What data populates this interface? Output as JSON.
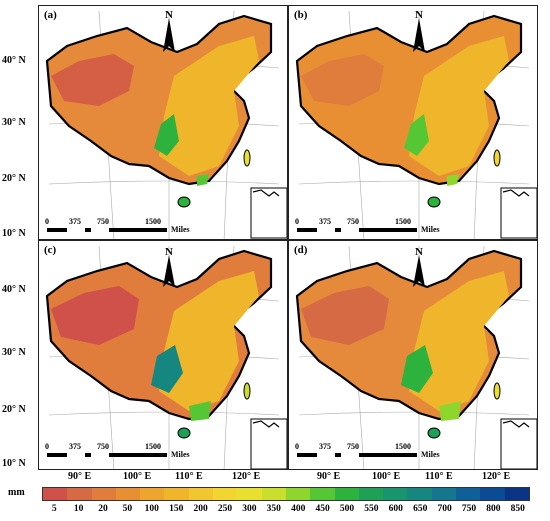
{
  "panels": [
    {
      "label": "(a)"
    },
    {
      "label": "(b)"
    },
    {
      "label": "(c)"
    },
    {
      "label": "(d)"
    }
  ],
  "north_arrow": "N",
  "scale_bar": {
    "ticks": [
      "0",
      "375",
      "750",
      "1500"
    ],
    "unit": "Miles"
  },
  "lat_labels": [
    "40° N",
    "30° N",
    "20° N",
    "10° N"
  ],
  "lon_labels": [
    "90° E",
    "100° E",
    "110° E",
    "120° E"
  ],
  "legend": {
    "unit": "mm",
    "values": [
      "5",
      "10",
      "20",
      "50",
      "100",
      "150",
      "200",
      "250",
      "300",
      "350",
      "400",
      "450",
      "500",
      "550",
      "600",
      "650",
      "700",
      "750",
      "800",
      "850"
    ],
    "colors": [
      "#d0504a",
      "#d66a45",
      "#e07d3c",
      "#e88f34",
      "#eda52d",
      "#f0b62b",
      "#f2c62e",
      "#f3d531",
      "#e8df2f",
      "#c9df2c",
      "#8ed62e",
      "#56c734",
      "#2db33d",
      "#1ea157",
      "#19956e",
      "#168681",
      "#137790",
      "#0f6098",
      "#0b4a94",
      "#0a3486"
    ]
  }
}
